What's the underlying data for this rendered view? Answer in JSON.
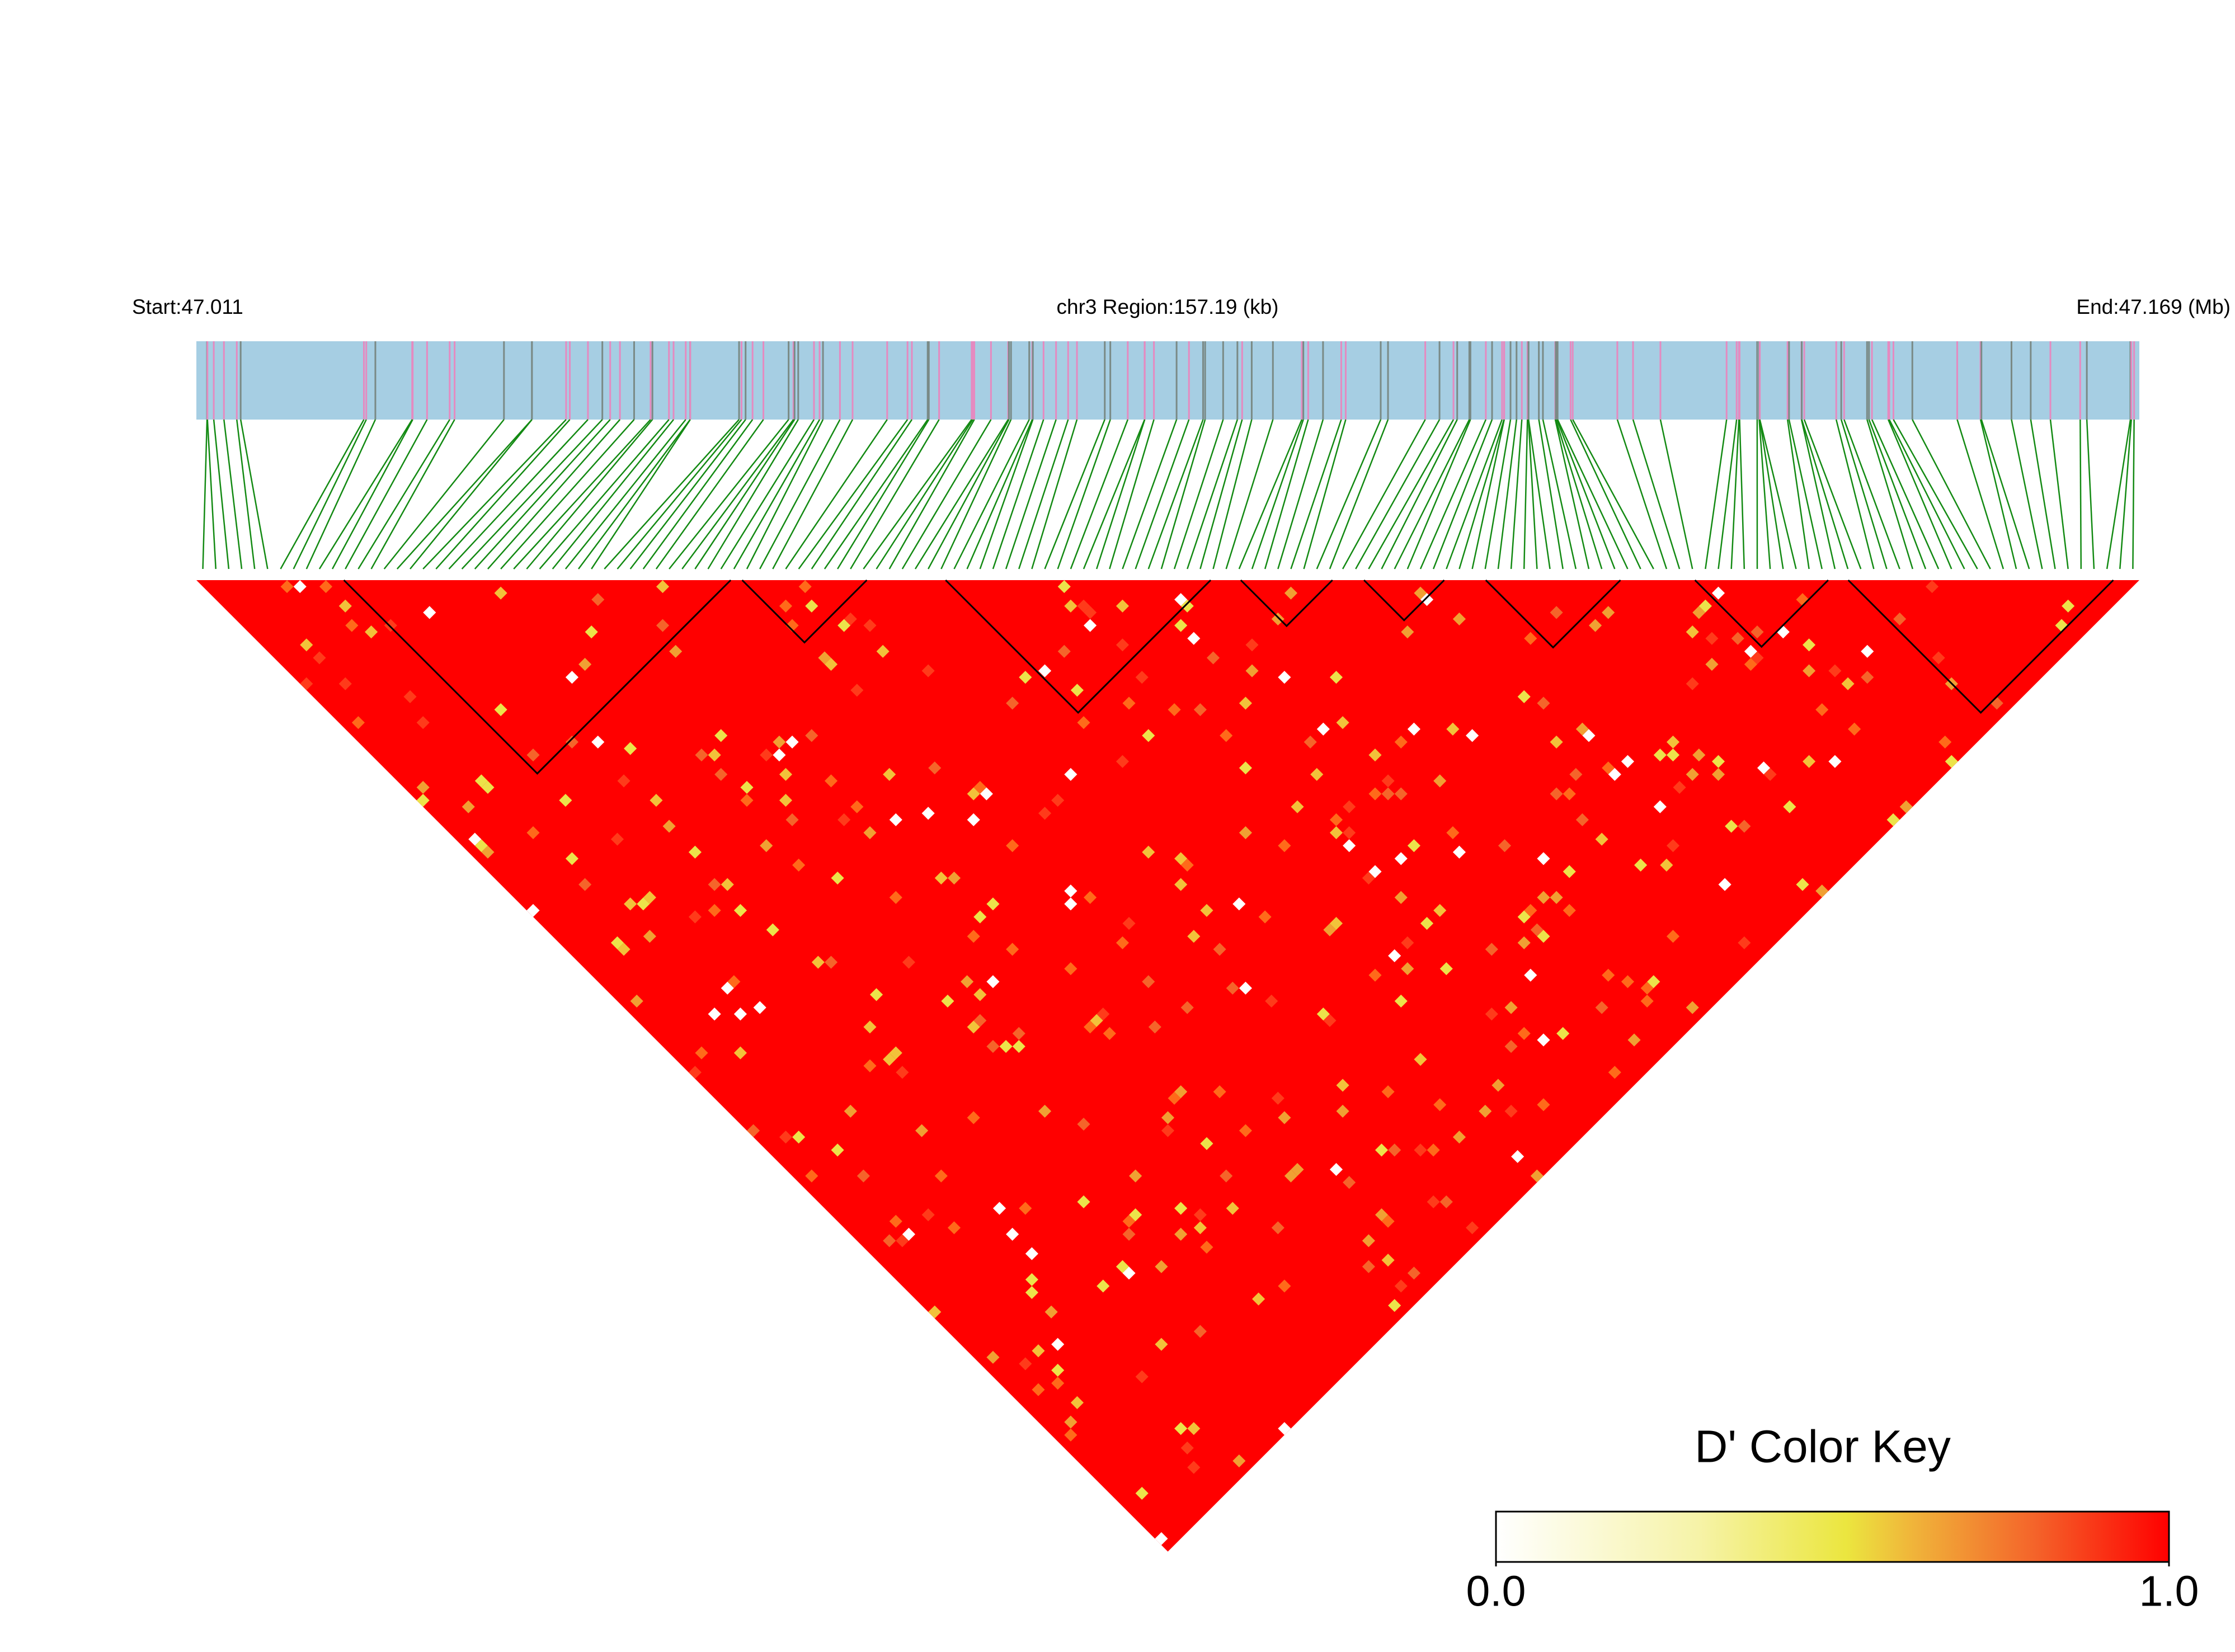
{
  "chart_data": {
    "type": "heatmap",
    "start_label": "Start:47.011",
    "region_label": "chr3 Region:157.19 (kb)",
    "end_label": "End:47.169 (Mb)",
    "colorbar": {
      "title": "D' Color Key",
      "clim": [
        0,
        1
      ],
      "ticks": [
        {
          "value": 0,
          "label": "0.0"
        },
        {
          "value": 1,
          "label": "1.0"
        }
      ]
    }
  }
}
